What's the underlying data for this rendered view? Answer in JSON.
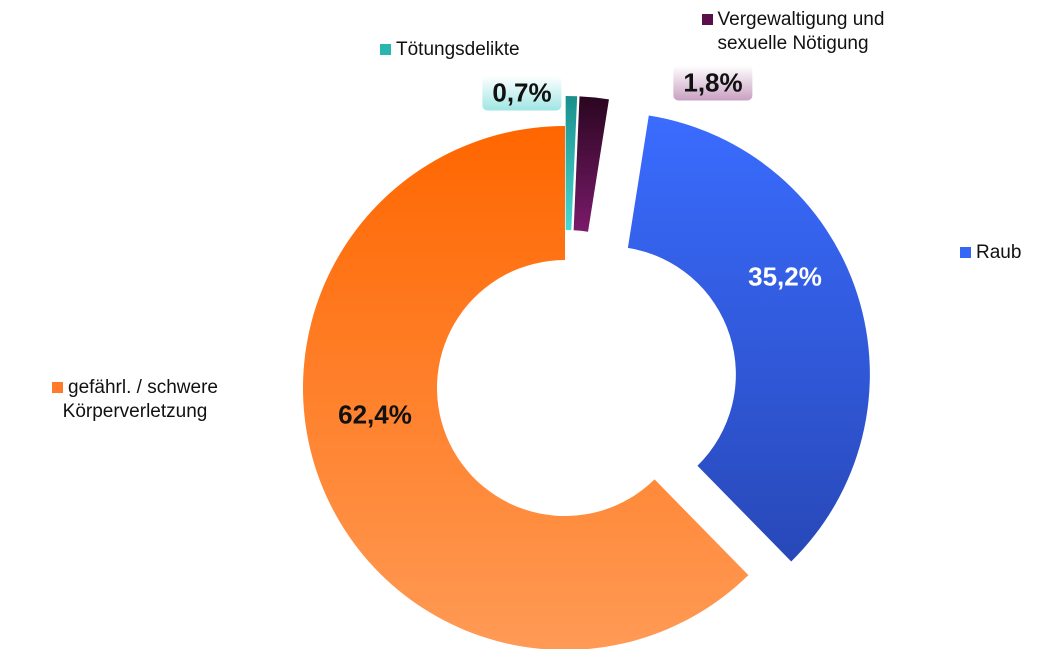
{
  "chart_data": {
    "type": "donut",
    "categories": [
      "Tötungsdelikte",
      "Vergewaltigung und sexuelle Nötigung",
      "Raub",
      "gefährl. / schwere Körperverletzung"
    ],
    "values": [
      0.7,
      1.8,
      35.2,
      62.4
    ],
    "value_labels": [
      "0,7%",
      "1,8%",
      "35,2%",
      "62,4%"
    ],
    "colors": [
      "#2ab5b0",
      "#5a0f4a",
      "#3566f5",
      "#ff7a2a"
    ]
  }
}
